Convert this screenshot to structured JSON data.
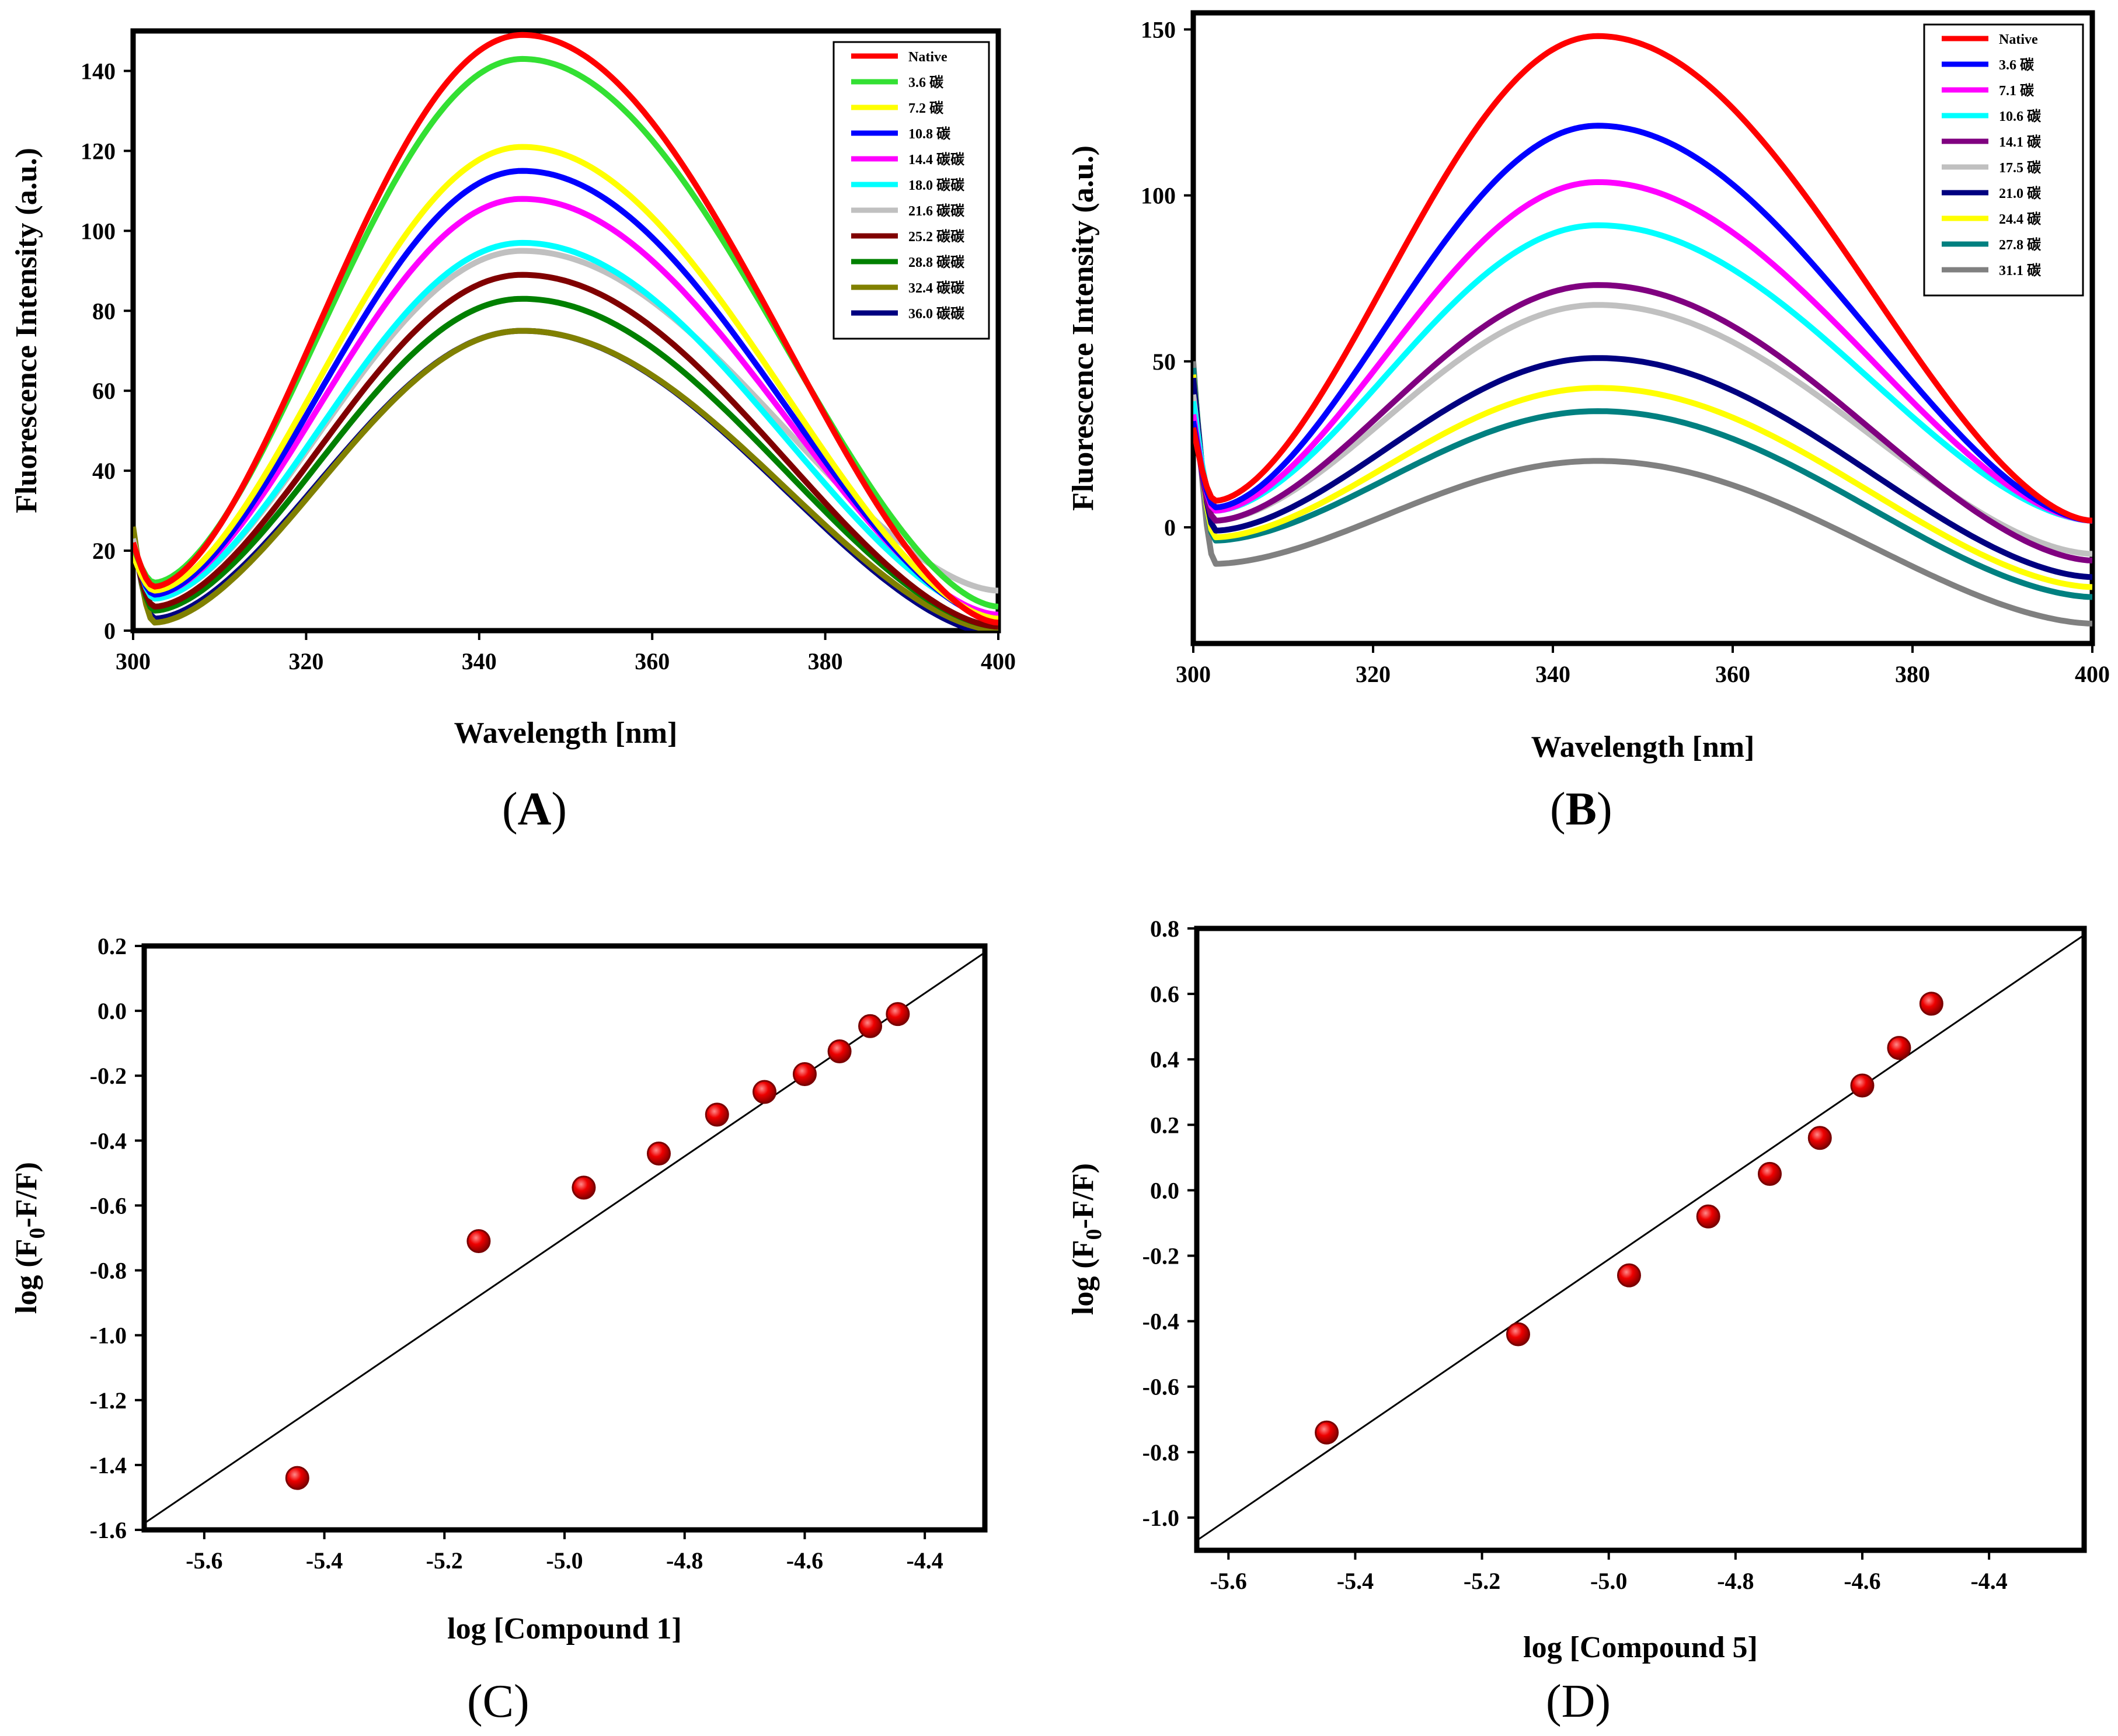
{
  "chart_data": [
    {
      "panel": "A",
      "type": "line",
      "xlabel": "Wavelength [nm]",
      "ylabel": "Fluorescence Intensity (a.u.)",
      "xlim": [
        300,
        400
      ],
      "ylim": [
        0,
        150
      ],
      "xticks": [
        300,
        320,
        340,
        360,
        380,
        400
      ],
      "yticks": [
        0,
        20,
        40,
        60,
        80,
        100,
        120,
        140
      ],
      "label_letter": "A",
      "series": [
        {
          "name": "Native",
          "color": "#ff0000",
          "peak": 149,
          "start": 22,
          "min": 11,
          "end": 2
        },
        {
          "name": "3.6 碳",
          "color": "#33e033",
          "peak": 143,
          "start": 21,
          "min": 12,
          "end": 6
        },
        {
          "name": "7.2 碳",
          "color": "#ffff00",
          "peak": 121,
          "start": 19,
          "min": 10,
          "end": 3
        },
        {
          "name": "10.8 碳",
          "color": "#0000ff",
          "peak": 115,
          "start": 20,
          "min": 9,
          "end": 3
        },
        {
          "name": "14.4 碳碳",
          "color": "#ff00ff",
          "peak": 108,
          "start": 21,
          "min": 9,
          "end": 4
        },
        {
          "name": "18.0 碳碳",
          "color": "#00ffff",
          "peak": 97,
          "start": 22,
          "min": 8,
          "end": 4
        },
        {
          "name": "21.6 碳碳",
          "color": "#c0c0c0",
          "peak": 95,
          "start": 23,
          "min": 8,
          "end": 10
        },
        {
          "name": "25.2 碳碳",
          "color": "#800000",
          "peak": 89,
          "start": 22,
          "min": 6,
          "end": 1
        },
        {
          "name": "28.8 碳碳",
          "color": "#008000",
          "peak": 83,
          "start": 23,
          "min": 5,
          "end": 1
        },
        {
          "name": "32.4 碳碳",
          "color": "#808000",
          "peak": 75,
          "start": 26,
          "min": 2,
          "end": 0
        },
        {
          "name": "36.0 碳碳",
          "color": "#000080",
          "peak": 75,
          "start": 24,
          "min": 3,
          "end": -1
        }
      ]
    },
    {
      "panel": "B",
      "type": "line",
      "xlabel": "Wavelength [nm]",
      "ylabel": "Fluorescence Intensity (a.u.)",
      "xlim": [
        300,
        400
      ],
      "ylim": [
        -35,
        155
      ],
      "xticks": [
        300,
        320,
        340,
        360,
        380,
        400
      ],
      "yticks": [
        0,
        50,
        100,
        150
      ],
      "label_letter": "B",
      "series": [
        {
          "name": "Native",
          "color": "#ff0000",
          "peak": 148,
          "start": 30,
          "min": 8,
          "end": 2
        },
        {
          "name": "3.6 碳",
          "color": "#0000ff",
          "peak": 121,
          "start": 32,
          "min": 6,
          "end": 2
        },
        {
          "name": "7.1 碳",
          "color": "#ff00ff",
          "peak": 104,
          "start": 34,
          "min": 5,
          "end": 2
        },
        {
          "name": "10.6 碳",
          "color": "#00ffff",
          "peak": 91,
          "start": 38,
          "min": 5,
          "end": 2
        },
        {
          "name": "14.1 碳",
          "color": "#800080",
          "peak": 73,
          "start": 35,
          "min": 2,
          "end": -10
        },
        {
          "name": "17.5 碳",
          "color": "#c0c0c0",
          "peak": 67,
          "start": 40,
          "min": 2,
          "end": -8
        },
        {
          "name": "21.0 碳",
          "color": "#000080",
          "peak": 51,
          "start": 45,
          "min": -1,
          "end": -15
        },
        {
          "name": "24.4 碳",
          "color": "#ffff00",
          "peak": 42,
          "start": 46,
          "min": -3,
          "end": -18
        },
        {
          "name": "27.8 碳",
          "color": "#008080",
          "peak": 35,
          "start": 48,
          "min": -4,
          "end": -21
        },
        {
          "name": "31.1 碳",
          "color": "#808080",
          "peak": 20,
          "start": 50,
          "min": -11,
          "end": -29
        }
      ]
    },
    {
      "panel": "C",
      "type": "scatter",
      "xlabel": "log [Compound 1]",
      "ylabel_parts": [
        "log (F",
        "0",
        "-F/F)"
      ],
      "xlim": [
        -5.7,
        -4.3
      ],
      "ylim": [
        -1.6,
        0.2
      ],
      "xticks": [
        -5.6,
        -5.4,
        -5.2,
        -5.0,
        -4.8,
        -4.6,
        -4.4
      ],
      "yticks": [
        -1.6,
        -1.4,
        -1.2,
        -1.0,
        -0.8,
        -0.6,
        -0.4,
        -0.2,
        0.0,
        0.2
      ],
      "label_letter": "C",
      "fit_line": {
        "x": [
          -5.7,
          -4.3
        ],
        "y": [
          -1.58,
          0.18
        ]
      },
      "points": {
        "x": [
          -5.445,
          -5.143,
          -4.968,
          -4.843,
          -4.746,
          -4.667,
          -4.6,
          -4.542,
          -4.491,
          -4.445
        ],
        "y": [
          -1.44,
          -0.71,
          -0.545,
          -0.44,
          -0.32,
          -0.25,
          -0.195,
          -0.125,
          -0.047,
          -0.01
        ]
      }
    },
    {
      "panel": "D",
      "type": "scatter",
      "xlabel": "log [Compound 5]",
      "ylabel_parts": [
        "log (F",
        "0",
        "-F/F)"
      ],
      "xlim": [
        -5.65,
        -4.25
      ],
      "ylim": [
        -1.1,
        0.8
      ],
      "xticks": [
        -5.6,
        -5.4,
        -5.2,
        -5.0,
        -4.8,
        -4.6,
        -4.4
      ],
      "yticks": [
        -1.0,
        -0.8,
        -0.6,
        -0.4,
        -0.2,
        0.0,
        0.2,
        0.4,
        0.6,
        0.8
      ],
      "label_letter": "D",
      "fit_line": {
        "x": [
          -5.65,
          -4.25
        ],
        "y": [
          -1.07,
          0.78
        ]
      },
      "points": {
        "x": [
          -5.445,
          -5.143,
          -4.968,
          -4.843,
          -4.746,
          -4.667,
          -4.6,
          -4.542,
          -4.491
        ],
        "y": [
          -0.74,
          -0.44,
          -0.26,
          -0.08,
          0.05,
          0.16,
          0.32,
          0.435,
          0.57
        ]
      }
    }
  ]
}
